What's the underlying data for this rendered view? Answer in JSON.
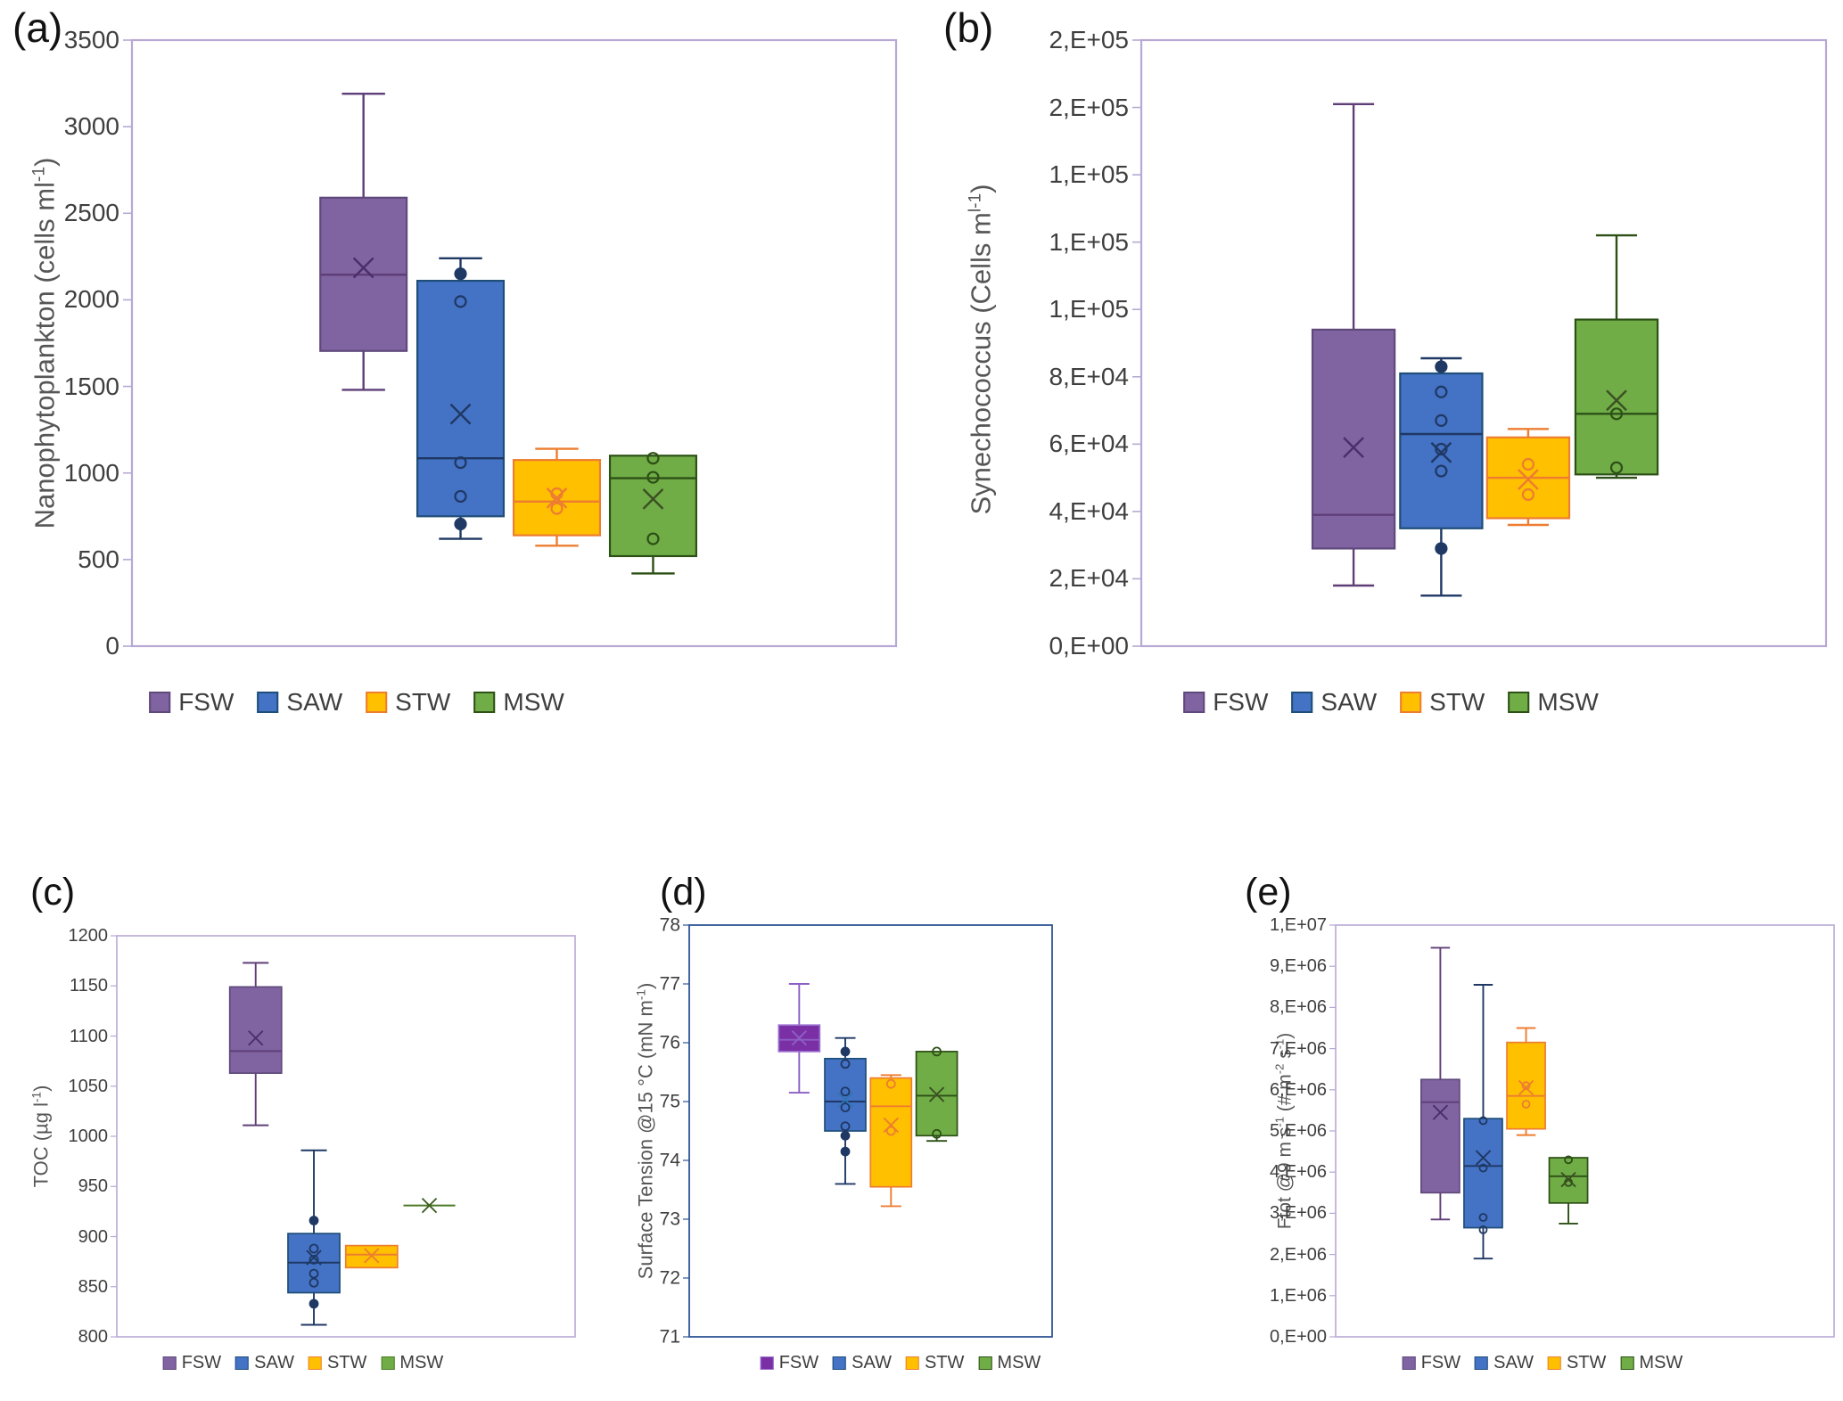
{
  "legend_labels": [
    "FSW",
    "SAW",
    "STW",
    "MSW"
  ],
  "chart_data": [
    {
      "id": "a",
      "type": "box",
      "label": "(a)",
      "y_title_parts": [
        {
          "t": "Nanophytoplankton (cells ml"
        },
        {
          "t": "-1",
          "sup": true
        },
        {
          "t": ")"
        }
      ],
      "ylim": [
        0,
        3500
      ],
      "ytick_labels": [
        "3500",
        "3000",
        "2500",
        "2000",
        "1500",
        "1000",
        "500",
        "0"
      ],
      "grid": false,
      "legend_position": "bottom",
      "frame_color": "#b8a8d4",
      "centers": [
        0.303,
        0.43,
        0.556,
        0.682
      ],
      "box_width_frac": 0.113,
      "series": [
        {
          "name": "FSW",
          "fill": "#8064a2",
          "stroke": "#5f497b",
          "line": "#5f3e78",
          "mean_color": "#4a2d6b",
          "whisker_low": 1480,
          "q1": 1705,
          "median": 2145,
          "mean": 2185,
          "q3": 2590,
          "whisker_high": 3190,
          "points": []
        },
        {
          "name": "SAW",
          "fill": "#4472c4",
          "stroke": "#1f4e79",
          "line": "#1f3864",
          "mean_color": "#1f3864",
          "whisker_low": 620,
          "q1": 750,
          "median": 1085,
          "mean": 1340,
          "q3": 2110,
          "whisker_high": 2240,
          "points": [
            {
              "v": 2150,
              "filled": true
            },
            {
              "v": 1990,
              "filled": false
            },
            {
              "v": 1060,
              "filled": false
            },
            {
              "v": 865,
              "filled": false
            },
            {
              "v": 705,
              "filled": true
            }
          ]
        },
        {
          "name": "STW",
          "fill": "#ffc000",
          "stroke": "#ed7d31",
          "line": "#ed7d31",
          "mean_color": "#ed7d31",
          "whisker_low": 580,
          "q1": 640,
          "median": 835,
          "mean": 855,
          "q3": 1075,
          "whisker_high": 1140,
          "points": [
            {
              "v": 880,
              "filled": false
            },
            {
              "v": 795,
              "filled": false
            }
          ]
        },
        {
          "name": "MSW",
          "fill": "#70ad47",
          "stroke": "#2d5016",
          "line": "#2d5016",
          "mean_color": "#3c4f23",
          "whisker_low": 420,
          "q1": 520,
          "median": 970,
          "mean": 850,
          "q3": 1100,
          "whisker_high": 1100,
          "points": [
            {
              "v": 1085,
              "filled": false
            },
            {
              "v": 975,
              "filled": false
            },
            {
              "v": 620,
              "filled": false
            }
          ]
        }
      ]
    },
    {
      "id": "b",
      "type": "box",
      "label": "(b)",
      "y_title_parts": [
        {
          "t": "Synechococcus (Cells m"
        },
        {
          "t": "l-1",
          "sup": true
        },
        {
          "t": ")"
        }
      ],
      "ylim": [
        0,
        180000
      ],
      "ytick_labels": [
        "2,E+05",
        "2,E+05",
        "1,E+05",
        "1,E+05",
        "1,E+05",
        "8,E+04",
        "6,E+04",
        "4,E+04",
        "2,E+04",
        "0,E+00"
      ],
      "grid": false,
      "legend_position": "bottom",
      "frame_color": "#b8a8d4",
      "centers": [
        0.31,
        0.438,
        0.565,
        0.694
      ],
      "box_width_frac": 0.12,
      "series": [
        {
          "name": "FSW",
          "fill": "#8064a2",
          "stroke": "#5f497b",
          "line": "#5f3e78",
          "mean_color": "#4a2d6b",
          "whisker_low": 18000,
          "q1": 29000,
          "median": 39000,
          "mean": 59000,
          "q3": 94000,
          "whisker_high": 161000,
          "points": []
        },
        {
          "name": "SAW",
          "fill": "#4472c4",
          "stroke": "#1f4e79",
          "line": "#1f3864",
          "mean_color": "#1f3864",
          "whisker_low": 15000,
          "q1": 35000,
          "median": 63000,
          "mean": 57500,
          "q3": 81000,
          "whisker_high": 85500,
          "points": [
            {
              "v": 83000,
              "filled": true
            },
            {
              "v": 75500,
              "filled": false
            },
            {
              "v": 67000,
              "filled": false
            },
            {
              "v": 58500,
              "filled": false
            },
            {
              "v": 52000,
              "filled": false
            },
            {
              "v": 29000,
              "filled": true
            }
          ]
        },
        {
          "name": "STW",
          "fill": "#ffc000",
          "stroke": "#ed7d31",
          "line": "#ed7d31",
          "mean_color": "#ed7d31",
          "whisker_low": 36000,
          "q1": 38000,
          "median": 50000,
          "mean": 49500,
          "q3": 62000,
          "whisker_high": 64500,
          "points": [
            {
              "v": 54000,
              "filled": false
            },
            {
              "v": 45000,
              "filled": false
            }
          ]
        },
        {
          "name": "MSW",
          "fill": "#70ad47",
          "stroke": "#2d5016",
          "line": "#2d5016",
          "mean_color": "#3c4f23",
          "whisker_low": 50000,
          "q1": 51000,
          "median": 69000,
          "mean": 73000,
          "q3": 97000,
          "whisker_high": 122000,
          "points": [
            {
              "v": 69000,
              "filled": false
            },
            {
              "v": 53000,
              "filled": false
            }
          ]
        }
      ]
    },
    {
      "id": "c",
      "type": "box",
      "label": "(c)",
      "y_title_parts": [
        {
          "t": "TOC (µg l"
        },
        {
          "t": "-1",
          "sup": true
        },
        {
          "t": ")"
        }
      ],
      "ylim": [
        800,
        1200
      ],
      "ytick_labels": [
        "1200",
        "1150",
        "1100",
        "1050",
        "1000",
        "950",
        "900",
        "850",
        "800"
      ],
      "grid": false,
      "legend_position": "bottom",
      "frame_color": "#b8a8d4",
      "centers": [
        0.303,
        0.43,
        0.556,
        0.682
      ],
      "box_width_frac": 0.113,
      "series": [
        {
          "name": "FSW",
          "fill": "#8064a2",
          "stroke": "#5f497b",
          "line": "#5f3e78",
          "mean_color": "#4a2d6b",
          "whisker_low": 1011,
          "q1": 1063,
          "median": 1085,
          "mean": 1098,
          "q3": 1149,
          "whisker_high": 1173,
          "points": []
        },
        {
          "name": "SAW",
          "fill": "#4472c4",
          "stroke": "#1f4e79",
          "line": "#1f3864",
          "mean_color": "#1f3864",
          "whisker_low": 812,
          "q1": 844,
          "median": 874,
          "mean": 879,
          "q3": 903,
          "whisker_high": 986,
          "points": [
            {
              "v": 916,
              "filled": true
            },
            {
              "v": 888,
              "filled": false
            },
            {
              "v": 877,
              "filled": false
            },
            {
              "v": 863,
              "filled": false
            },
            {
              "v": 854,
              "filled": false
            },
            {
              "v": 833,
              "filled": true
            }
          ]
        },
        {
          "name": "STW",
          "fill": "#ffc000",
          "stroke": "#ed7d31",
          "line": "#ed7d31",
          "mean_color": "#ed7d31",
          "whisker_low": 869,
          "q1": 869,
          "median": 882,
          "mean": 881,
          "q3": 891,
          "whisker_high": 891,
          "points": []
        },
        {
          "name": "MSW",
          "fill": "#70ad47",
          "stroke": "#4e7a27",
          "line": "#4e7a27",
          "mean_color": "#3c5c20",
          "whisker_low": 931,
          "q1": 931,
          "median": 931,
          "mean": 931,
          "q3": 931,
          "whisker_high": 931,
          "points": []
        }
      ]
    },
    {
      "id": "d",
      "type": "box",
      "label": "(d)",
      "y_title_parts": [
        {
          "t": "Surface Tension @15 °C (mN m"
        },
        {
          "t": "-1",
          "sup": true
        },
        {
          "t": ")"
        }
      ],
      "ylim": [
        71,
        78
      ],
      "ytick_labels": [
        "78",
        "77",
        "76",
        "75",
        "74",
        "73",
        "72",
        "71"
      ],
      "grid": false,
      "legend_position": "bottom",
      "frame_color": "#2e5496",
      "centers": [
        0.303,
        0.43,
        0.556,
        0.682
      ],
      "box_width_frac": 0.113,
      "series": [
        {
          "name": "FSW",
          "fill": "#7a2fa5",
          "stroke": "#9a6fd0",
          "line": "#8d5fc4",
          "mean_color": "#8d5fc4",
          "whisker_low": 75.15,
          "q1": 75.85,
          "median": 76.05,
          "mean": 76.08,
          "q3": 76.3,
          "whisker_high": 77.0,
          "points": []
        },
        {
          "name": "SAW",
          "fill": "#4472c4",
          "stroke": "#1f4e79",
          "line": "#1f3864",
          "mean_color": "#2e75b6",
          "whisker_low": 73.6,
          "q1": 74.5,
          "median": 75.0,
          "mean": 75.03,
          "q3": 75.73,
          "whisker_high": 76.08,
          "points": [
            {
              "v": 75.85,
              "filled": true
            },
            {
              "v": 75.64,
              "filled": false
            },
            {
              "v": 75.17,
              "filled": false
            },
            {
              "v": 74.9,
              "filled": false
            },
            {
              "v": 74.58,
              "filled": false
            },
            {
              "v": 74.42,
              "filled": true
            },
            {
              "v": 74.15,
              "filled": true
            }
          ]
        },
        {
          "name": "STW",
          "fill": "#ffc000",
          "stroke": "#ed7d31",
          "line": "#ed7d31",
          "mean_color": "#ed7d31",
          "whisker_low": 73.22,
          "q1": 73.55,
          "median": 74.92,
          "mean": 74.6,
          "q3": 75.4,
          "whisker_high": 75.45,
          "points": [
            {
              "v": 75.3,
              "filled": false
            },
            {
              "v": 74.5,
              "filled": false
            }
          ]
        },
        {
          "name": "MSW",
          "fill": "#70ad47",
          "stroke": "#2d5016",
          "line": "#2d5016",
          "mean_color": "#3c4f23",
          "whisker_low": 74.33,
          "q1": 74.42,
          "median": 75.1,
          "mean": 75.12,
          "q3": 75.85,
          "whisker_high": 75.85,
          "points": [
            {
              "v": 75.85,
              "filled": false
            },
            {
              "v": 74.45,
              "filled": false
            }
          ]
        }
      ]
    },
    {
      "id": "e",
      "type": "box",
      "label": "(e)",
      "y_title_parts": [
        {
          "t": "Ftot @9 m s"
        },
        {
          "t": "-1",
          "sup": true
        },
        {
          "t": " (# m"
        },
        {
          "t": "-2",
          "sup": true
        },
        {
          "t": " s"
        },
        {
          "t": "-1",
          "sup": true
        },
        {
          "t": ")"
        }
      ],
      "ylim": [
        0,
        10000000
      ],
      "ytick_labels": [
        "1,E+07",
        "9,E+06",
        "8,E+06",
        "7,E+06",
        "6,E+06",
        "5,E+06",
        "4,E+06",
        "3,E+06",
        "2,E+06",
        "1,E+06",
        "0,E+00"
      ],
      "grid": false,
      "legend_position": "bottom",
      "frame_color": "#b8a8d4",
      "centers": [
        0.21,
        0.296,
        0.382,
        0.467
      ],
      "box_width_frac": 0.077,
      "series": [
        {
          "name": "FSW",
          "fill": "#8064a2",
          "stroke": "#5f497b",
          "line": "#5f3e78",
          "mean_color": "#4a2d6b",
          "whisker_low": 2850000,
          "q1": 3500000,
          "median": 5700000,
          "mean": 5450000,
          "q3": 6250000,
          "whisker_high": 9450000,
          "points": []
        },
        {
          "name": "SAW",
          "fill": "#4472c4",
          "stroke": "#1f4e79",
          "line": "#1f3864",
          "mean_color": "#1f3864",
          "whisker_low": 1900000,
          "q1": 2650000,
          "median": 4150000,
          "mean": 4350000,
          "q3": 5300000,
          "whisker_high": 8550000,
          "points": [
            {
              "v": 5250000,
              "filled": false
            },
            {
              "v": 4100000,
              "filled": false
            },
            {
              "v": 2900000,
              "filled": false
            },
            {
              "v": 2600000,
              "filled": false
            }
          ]
        },
        {
          "name": "STW",
          "fill": "#ffc000",
          "stroke": "#ed7d31",
          "line": "#ed7d31",
          "mean_color": "#ed7d31",
          "whisker_low": 4900000,
          "q1": 5050000,
          "median": 5850000,
          "mean": 6050000,
          "q3": 7150000,
          "whisker_high": 7500000,
          "points": [
            {
              "v": 6100000,
              "filled": false
            },
            {
              "v": 5650000,
              "filled": false
            }
          ]
        },
        {
          "name": "MSW",
          "fill": "#70ad47",
          "stroke": "#2d5016",
          "line": "#2d5016",
          "mean_color": "#3c4f23",
          "whisker_low": 2750000,
          "q1": 3250000,
          "median": 3900000,
          "mean": 3820000,
          "q3": 4350000,
          "whisker_high": 4350000,
          "points": [
            {
              "v": 4300000,
              "filled": false
            },
            {
              "v": 3750000,
              "filled": false
            }
          ]
        }
      ]
    }
  ]
}
